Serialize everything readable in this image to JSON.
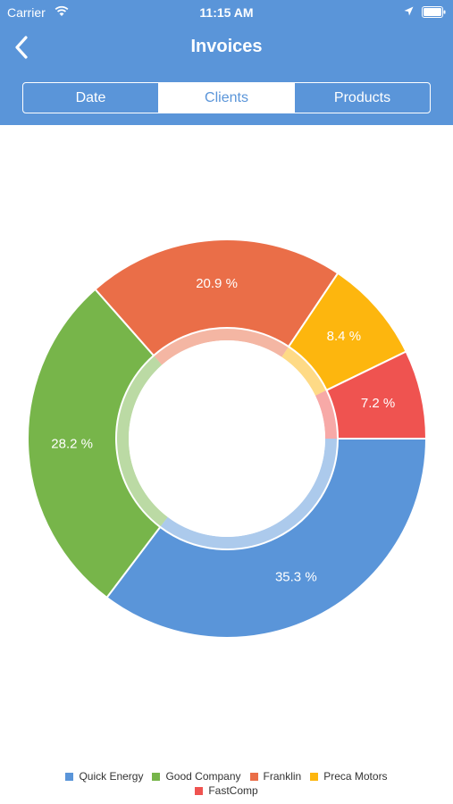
{
  "status_bar": {
    "carrier": "Carrier",
    "time": "11:15 AM"
  },
  "nav": {
    "title": "Invoices",
    "back_icon": "chevron-left-icon"
  },
  "tabs": [
    {
      "label": "Date",
      "selected": false
    },
    {
      "label": "Clients",
      "selected": true
    },
    {
      "label": "Products",
      "selected": false
    }
  ],
  "colors": {
    "header": "#5a95d9",
    "quick_energy": "#5a95d9",
    "good_company": "#77b54a",
    "franklin": "#ea6e48",
    "preca_motors": "#fdb60e",
    "fastcomp": "#ef5350"
  },
  "chart_data": {
    "type": "pie",
    "donut": true,
    "legend_position": "bottom",
    "slices": [
      {
        "name": "Quick Energy",
        "value": 35.3,
        "label": "35.3 %",
        "color": "#5a95d9"
      },
      {
        "name": "Good Company",
        "value": 28.2,
        "label": "28.2 %",
        "color": "#77b54a"
      },
      {
        "name": "Franklin",
        "value": 20.9,
        "label": "20.9 %",
        "color": "#ea6e48"
      },
      {
        "name": "Preca Motors",
        "value": 8.4,
        "label": "8.4 %",
        "color": "#fdb60e"
      },
      {
        "name": "FastComp",
        "value": 7.2,
        "label": "7.2 %",
        "color": "#ef5350"
      }
    ]
  }
}
